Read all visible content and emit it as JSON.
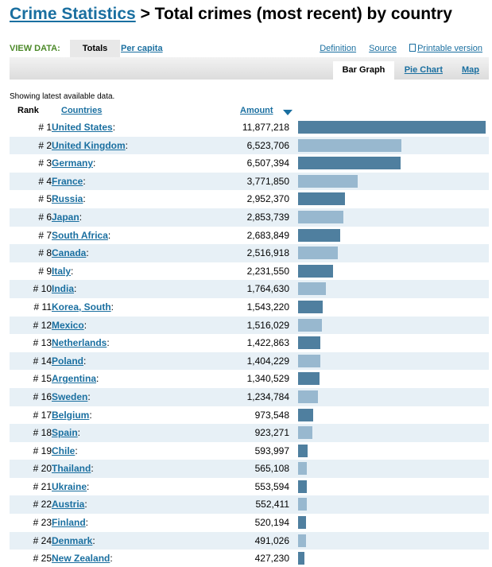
{
  "page": {
    "title_link": "Crime Statistics",
    "title_sep": " > ",
    "title_rest": "Total crimes (most recent) by country"
  },
  "view_data": {
    "label": "VIEW DATA:",
    "tabs": [
      "Totals",
      "Per capita"
    ],
    "selected": "Totals"
  },
  "top_links": {
    "definition": "Definition",
    "source": "Source",
    "printable": "Printable version"
  },
  "display_tabs": {
    "bar_graph": "Bar Graph",
    "pie_chart": "Pie Chart",
    "map": "Map",
    "selected": "Bar Graph"
  },
  "note": "Showing latest available data.",
  "columns": {
    "rank": "Rank",
    "countries": "Countries",
    "amount": "Amount"
  },
  "colors": {
    "bar_dark": "#4f7f9f",
    "bar_light": "#98b8cf",
    "row_alt": "#e7f0f6",
    "link": "#1a6fa0",
    "view_label": "#4d8a2a"
  },
  "rows": [
    {
      "rank": "# 1",
      "country": "United States",
      "amount": "11,877,218"
    },
    {
      "rank": "# 2",
      "country": "United Kingdom",
      "amount": "6,523,706"
    },
    {
      "rank": "# 3",
      "country": "Germany",
      "amount": "6,507,394"
    },
    {
      "rank": "# 4",
      "country": "France",
      "amount": "3,771,850"
    },
    {
      "rank": "# 5",
      "country": "Russia",
      "amount": "2,952,370"
    },
    {
      "rank": "# 6",
      "country": "Japan",
      "amount": "2,853,739"
    },
    {
      "rank": "# 7",
      "country": "South Africa",
      "amount": "2,683,849"
    },
    {
      "rank": "# 8",
      "country": "Canada",
      "amount": "2,516,918"
    },
    {
      "rank": "# 9",
      "country": "Italy",
      "amount": "2,231,550"
    },
    {
      "rank": "# 10",
      "country": "India",
      "amount": "1,764,630"
    },
    {
      "rank": "# 11",
      "country": "Korea, South",
      "amount": "1,543,220"
    },
    {
      "rank": "# 12",
      "country": "Mexico",
      "amount": "1,516,029"
    },
    {
      "rank": "# 13",
      "country": "Netherlands",
      "amount": "1,422,863"
    },
    {
      "rank": "# 14",
      "country": "Poland",
      "amount": "1,404,229"
    },
    {
      "rank": "# 15",
      "country": "Argentina",
      "amount": "1,340,529"
    },
    {
      "rank": "# 16",
      "country": "Sweden",
      "amount": "1,234,784"
    },
    {
      "rank": "# 17",
      "country": "Belgium",
      "amount": "973,548"
    },
    {
      "rank": "# 18",
      "country": "Spain",
      "amount": "923,271"
    },
    {
      "rank": "# 19",
      "country": "Chile",
      "amount": "593,997"
    },
    {
      "rank": "# 20",
      "country": "Thailand",
      "amount": "565,108"
    },
    {
      "rank": "# 21",
      "country": "Ukraine",
      "amount": "553,594"
    },
    {
      "rank": "# 22",
      "country": "Austria",
      "amount": "552,411"
    },
    {
      "rank": "# 23",
      "country": "Finland",
      "amount": "520,194"
    },
    {
      "rank": "# 24",
      "country": "Denmark",
      "amount": "491,026"
    },
    {
      "rank": "# 25",
      "country": "New Zealand",
      "amount": "427,230"
    }
  ]
}
